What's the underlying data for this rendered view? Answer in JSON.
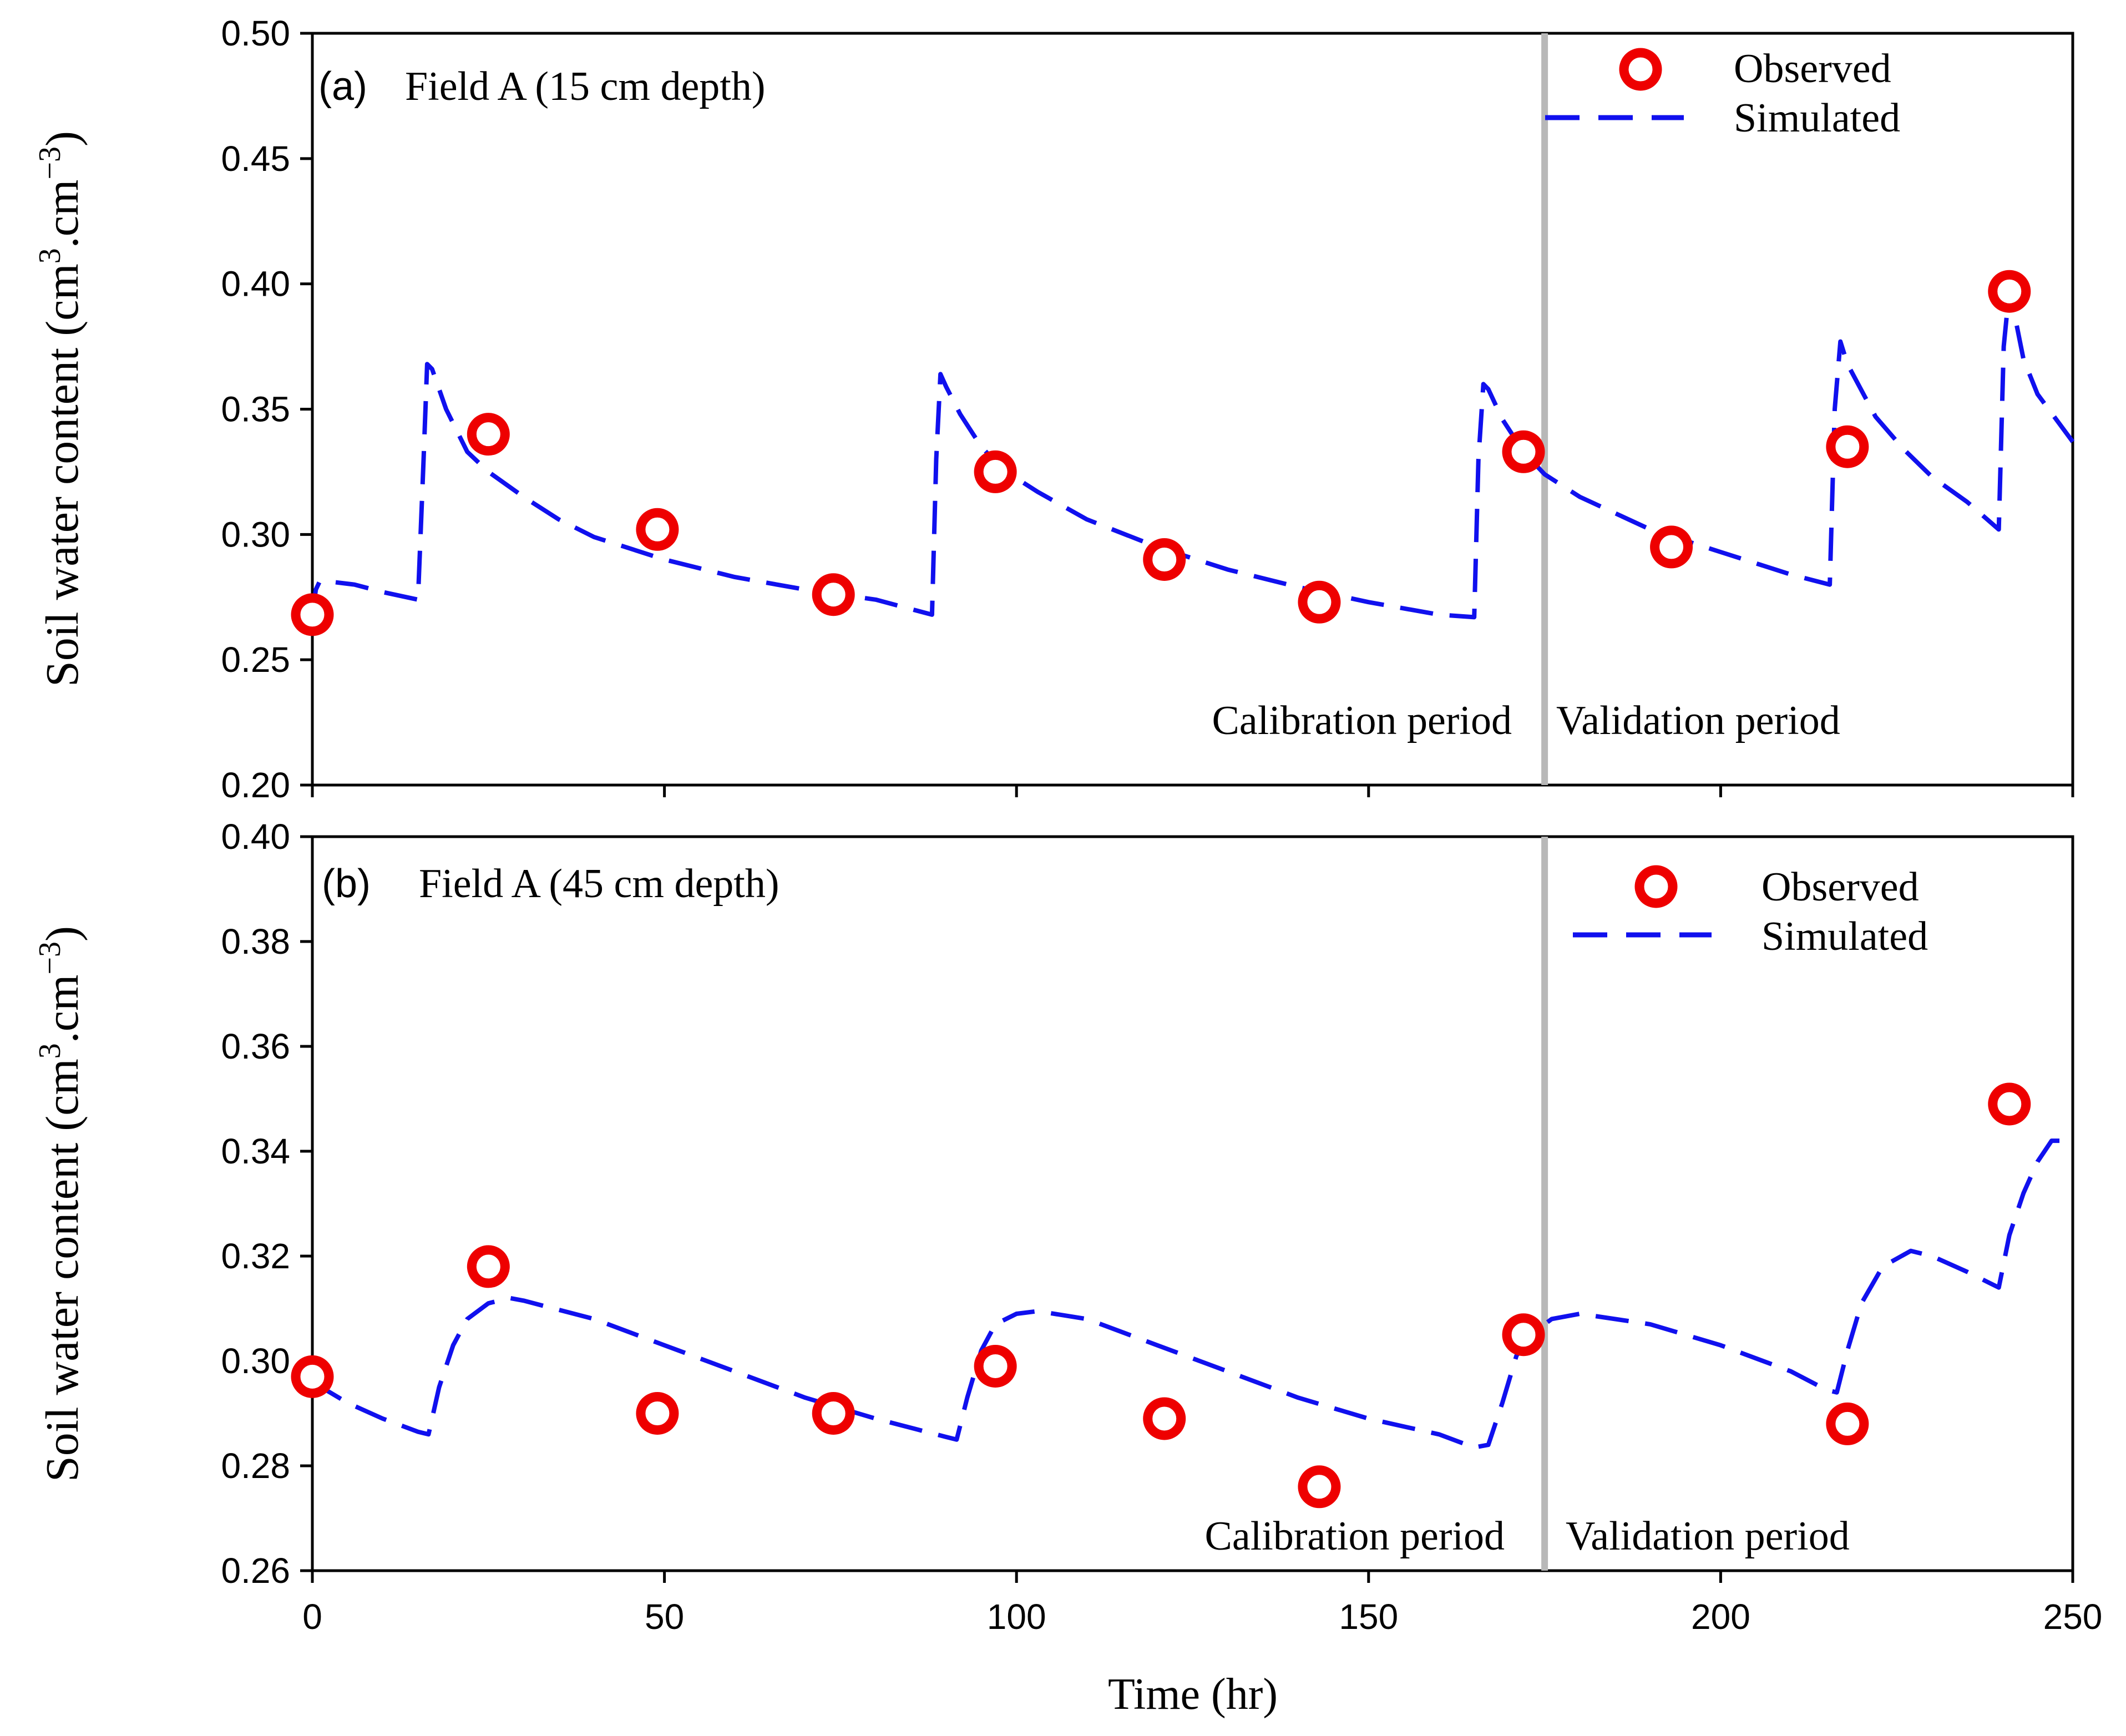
{
  "figure": {
    "xlabel": "Time (hr)",
    "divider_time": 175,
    "colors": {
      "observed": "#ee0000",
      "simulated": "#1010ee",
      "divider": "#b8b8b8",
      "axis": "#000000"
    },
    "legend": {
      "observed": "Observed",
      "simulated": "Simulated"
    }
  },
  "chart_data": [
    {
      "type": "line",
      "panel_tag": "(a)",
      "title": "Field A (15 cm depth)",
      "ylabel": {
        "main": "Soil water content (cm",
        "sup1": "3",
        "mid": ".cm",
        "sup2": "−3",
        "end": ")"
      },
      "xlim": [
        0,
        250
      ],
      "ylim": [
        0.2,
        0.5
      ],
      "xticks": [
        0,
        50,
        100,
        150,
        200,
        250
      ],
      "yticks": [
        "0.20",
        "0.25",
        "0.30",
        "0.35",
        "0.40",
        "0.45",
        "0.50"
      ],
      "period_labels": [
        "Calibration period",
        "Validation period"
      ],
      "observed": {
        "name": "Observed",
        "x": [
          0,
          25,
          49,
          74,
          97,
          121,
          143,
          172,
          193,
          218,
          241
        ],
        "y": [
          0.268,
          0.34,
          0.302,
          0.276,
          0.325,
          0.29,
          0.273,
          0.333,
          0.295,
          0.335,
          0.397
        ]
      },
      "simulated": {
        "name": "Simulated",
        "x": [
          0,
          0.5,
          1,
          3,
          6,
          10,
          15,
          15.8,
          16.3,
          17,
          19,
          22,
          25,
          30,
          35,
          40,
          50,
          60,
          70,
          80,
          88,
          88.6,
          89.2,
          90,
          92,
          95,
          98,
          103,
          110,
          120,
          130,
          140,
          150,
          160,
          165,
          165.6,
          166.3,
          167,
          169,
          172,
          175,
          180,
          190,
          200,
          210,
          215.5,
          216.2,
          217,
          218,
          222,
          226,
          230,
          235,
          239.5,
          240.2,
          241,
          243,
          245,
          250
        ],
        "y": [
          0.268,
          0.278,
          0.281,
          0.281,
          0.28,
          0.277,
          0.274,
          0.33,
          0.368,
          0.366,
          0.35,
          0.333,
          0.325,
          0.315,
          0.306,
          0.299,
          0.29,
          0.283,
          0.278,
          0.274,
          0.268,
          0.33,
          0.364,
          0.359,
          0.348,
          0.335,
          0.326,
          0.317,
          0.306,
          0.295,
          0.286,
          0.279,
          0.273,
          0.268,
          0.267,
          0.33,
          0.36,
          0.358,
          0.346,
          0.333,
          0.324,
          0.315,
          0.302,
          0.293,
          0.284,
          0.28,
          0.35,
          0.377,
          0.368,
          0.347,
          0.334,
          0.323,
          0.313,
          0.302,
          0.375,
          0.398,
          0.37,
          0.356,
          0.337
        ]
      }
    },
    {
      "type": "line",
      "panel_tag": "(b)",
      "title": "Field A (45 cm depth)",
      "ylabel": {
        "main": "Soil water content (cm",
        "sup1": "3",
        "mid": ".cm",
        "sup2": "−3",
        "end": ")"
      },
      "xlim": [
        0,
        250
      ],
      "ylim": [
        0.26,
        0.4
      ],
      "xticks": [
        0,
        50,
        100,
        150,
        200,
        250
      ],
      "yticks": [
        "0.26",
        "0.28",
        "0.30",
        "0.32",
        "0.34",
        "0.36",
        "0.38",
        "0.40"
      ],
      "period_labels": [
        "Calibration period",
        "Validation period"
      ],
      "observed": {
        "name": "Observed",
        "x": [
          0,
          25,
          49,
          74,
          97,
          121,
          143,
          172,
          218,
          241
        ],
        "y": [
          0.297,
          0.318,
          0.29,
          0.29,
          0.299,
          0.289,
          0.276,
          0.305,
          0.288,
          0.349
        ]
      },
      "simulated": {
        "name": "Simulated",
        "x": [
          0,
          5,
          10,
          15,
          16.5,
          18,
          20,
          22,
          25,
          28,
          30,
          40,
          50,
          60,
          70,
          80,
          90,
          91.5,
          93,
          95,
          97,
          100,
          103,
          110,
          120,
          130,
          140,
          150,
          160,
          165,
          167,
          169,
          171,
          173,
          176,
          180,
          190,
          200,
          210,
          215,
          216.5,
          218,
          220,
          223,
          227,
          230,
          235,
          238,
          239.5,
          241,
          243,
          245,
          247,
          250
        ],
        "y": [
          0.296,
          0.292,
          0.289,
          0.2865,
          0.286,
          0.295,
          0.303,
          0.308,
          0.311,
          0.312,
          0.3115,
          0.308,
          0.303,
          0.298,
          0.293,
          0.289,
          0.2855,
          0.285,
          0.293,
          0.302,
          0.307,
          0.309,
          0.3095,
          0.308,
          0.303,
          0.298,
          0.293,
          0.289,
          0.286,
          0.2835,
          0.284,
          0.292,
          0.301,
          0.305,
          0.308,
          0.309,
          0.307,
          0.303,
          0.298,
          0.2945,
          0.294,
          0.302,
          0.311,
          0.318,
          0.321,
          0.32,
          0.317,
          0.315,
          0.314,
          0.324,
          0.332,
          0.338,
          0.342,
          0.342
        ]
      }
    }
  ]
}
